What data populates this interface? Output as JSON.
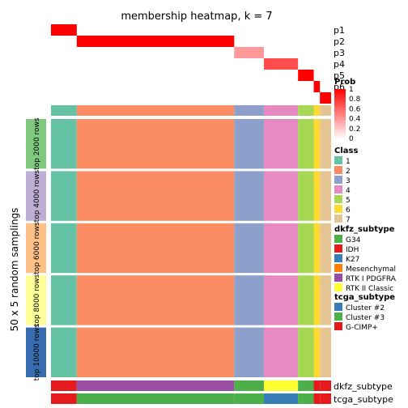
{
  "chart_data": {
    "type": "heatmap",
    "title": "membership heatmap, k = 7",
    "ylabel": "50 x 5 random samplings",
    "prob_rows": [
      "p1",
      "p2",
      "p3",
      "p4",
      "p5",
      "p6",
      "p7"
    ],
    "prob_legend": {
      "title": "Prob",
      "ticks": [
        "1",
        "0.8",
        "0.6",
        "0.4",
        "0.2",
        "0"
      ]
    },
    "class_row_label": "Class",
    "class_legend": {
      "title": "Class",
      "items": [
        {
          "label": "1",
          "color": "#66C2A5"
        },
        {
          "label": "2",
          "color": "#FC8D62"
        },
        {
          "label": "3",
          "color": "#8DA0CB"
        },
        {
          "label": "4",
          "color": "#E78AC3"
        },
        {
          "label": "5",
          "color": "#A6D854"
        },
        {
          "label": "6",
          "color": "#FFD92F"
        },
        {
          "label": "7",
          "color": "#E5C494"
        }
      ]
    },
    "row_groups": [
      {
        "label": "top 2000 rows",
        "color": "#7FC97F"
      },
      {
        "label": "top 4000 rows",
        "color": "#BEAED4"
      },
      {
        "label": "top 6000 rows",
        "color": "#FDC086"
      },
      {
        "label": "top 8000 rows",
        "color": "#FFFF99"
      },
      {
        "label": "top 10000 rows",
        "color": "#386CB0"
      }
    ],
    "dkfz_legend": {
      "title": "dkfz_subtype",
      "items": [
        {
          "label": "G34",
          "color": "#4DAF4A"
        },
        {
          "label": "IDH",
          "color": "#E41A1C"
        },
        {
          "label": "K27",
          "color": "#377EB8"
        },
        {
          "label": "Mesenchymal",
          "color": "#FF7F00"
        },
        {
          "label": "RTK I PDGFRA",
          "color": "#984EA3"
        },
        {
          "label": "RTK II Classic",
          "color": "#FFFF33"
        }
      ]
    },
    "tcga_legend": {
      "title": "tcga_subtype",
      "items": [
        {
          "label": "Cluster #2",
          "color": "#377EB8"
        },
        {
          "label": "Cluster #3",
          "color": "#4DAF4A"
        },
        {
          "label": "G-CIMP+",
          "color": "#E41A1C"
        }
      ]
    },
    "bottom_labels": {
      "dkfz": "dkfz_subtype",
      "tcga": "tcga_subtype"
    },
    "column_blocks": [
      {
        "cls": "1",
        "start": 0.0,
        "end": 0.092,
        "prob_row": "p1",
        "prob": 1.0
      },
      {
        "cls": "2",
        "start": 0.092,
        "end": 0.654,
        "prob_row": "p2",
        "prob": 1.0
      },
      {
        "cls": "3",
        "start": 0.654,
        "end": 0.76,
        "prob_row": "p3",
        "prob": 0.4
      },
      {
        "cls": "4",
        "start": 0.76,
        "end": 0.882,
        "prob_row": "p4",
        "prob": 0.7
      },
      {
        "cls": "5",
        "start": 0.882,
        "end": 0.938,
        "prob_row": "p5",
        "prob": 1.0
      },
      {
        "cls": "6",
        "start": 0.938,
        "end": 0.96,
        "prob_row": "p6",
        "prob": 1.0
      },
      {
        "cls": "7",
        "start": 0.96,
        "end": 1.0,
        "prob_row": "p7",
        "prob": 1.0
      }
    ],
    "colors": {
      "prob_high": "#FF0000",
      "prob_low": "#FFFFFF",
      "separator": "#FFFFFF"
    }
  }
}
